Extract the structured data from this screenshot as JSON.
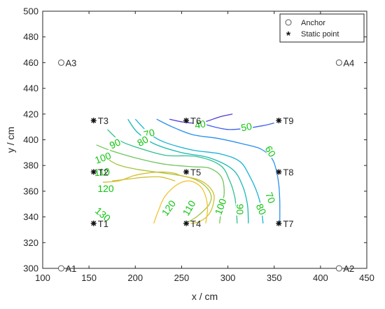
{
  "chart_data": {
    "type": "contour",
    "xlabel": "x / cm",
    "ylabel": "y / cm",
    "xlim": [
      100,
      450
    ],
    "ylim": [
      300,
      500
    ],
    "xticks": [
      100,
      150,
      200,
      250,
      300,
      350,
      400,
      450
    ],
    "yticks": [
      300,
      320,
      340,
      360,
      380,
      400,
      420,
      440,
      460,
      480,
      500
    ],
    "grid": false,
    "legend_position": "top-right",
    "legend": [
      {
        "label": "Anchor",
        "marker": "circle"
      },
      {
        "label": "Static point",
        "marker": "asterisk"
      }
    ],
    "anchors": [
      {
        "label": "A1",
        "x": 120,
        "y": 300
      },
      {
        "label": "A2",
        "x": 420,
        "y": 300
      },
      {
        "label": "A3",
        "x": 120,
        "y": 460
      },
      {
        "label": "A4",
        "x": 420,
        "y": 460
      }
    ],
    "static_points": [
      {
        "label": "T1",
        "x": 155,
        "y": 335
      },
      {
        "label": "T2",
        "x": 155,
        "y": 375
      },
      {
        "label": "T3",
        "x": 155,
        "y": 415
      },
      {
        "label": "T4",
        "x": 255,
        "y": 335
      },
      {
        "label": "T5",
        "x": 255,
        "y": 375
      },
      {
        "label": "T6",
        "x": 255,
        "y": 415
      },
      {
        "label": "T7",
        "x": 355,
        "y": 335
      },
      {
        "label": "T8",
        "x": 355,
        "y": 375
      },
      {
        "label": "T9",
        "x": 355,
        "y": 415
      }
    ],
    "contours": [
      {
        "level": 40,
        "color": "#4b3bd6",
        "label_at": [
          270,
          412
        ],
        "points": [
          [
            237,
            416
          ],
          [
            250,
            414
          ],
          [
            262,
            413
          ],
          [
            275,
            414
          ],
          [
            292,
            418
          ],
          [
            305,
            420
          ]
        ]
      },
      {
        "level": 50,
        "color": "#3e5ef0",
        "label_at": [
          315,
          410
        ],
        "points": [
          [
            263,
            415
          ],
          [
            280,
            411
          ],
          [
            300,
            408
          ],
          [
            320,
            409
          ],
          [
            338,
            411
          ],
          [
            350,
            413
          ]
        ]
      },
      {
        "level": 60,
        "color": "#2a8fef",
        "label_at": [
          345,
          390
        ],
        "points": [
          [
            223,
            416
          ],
          [
            240,
            410
          ],
          [
            262,
            404
          ],
          [
            290,
            401
          ],
          [
            315,
            397
          ],
          [
            335,
            393
          ],
          [
            347,
            386
          ],
          [
            352,
            377
          ],
          [
            355,
            365
          ],
          [
            356,
            352
          ],
          [
            356,
            335
          ]
        ]
      },
      {
        "level": 70,
        "color": "#1ab2d6",
        "label_at": [
          216,
          403
        ],
        "points": [
          [
            200,
            416
          ],
          [
            215,
            405
          ],
          [
            232,
            398
          ],
          [
            262,
            392
          ],
          [
            292,
            389
          ],
          [
            313,
            383
          ],
          [
            324,
            371
          ],
          [
            332,
            358
          ],
          [
            336,
            347
          ],
          [
            338,
            335
          ]
        ]
      },
      {
        "level": 80,
        "color": "#19b9b2",
        "label_at": [
          208,
          399
        ],
        "points": [
          [
            192,
            416
          ],
          [
            202,
            406
          ],
          [
            220,
            397
          ],
          [
            250,
            390
          ],
          [
            280,
            386
          ],
          [
            305,
            377
          ],
          [
            316,
            364
          ],
          [
            321,
            350
          ],
          [
            322,
            338
          ],
          [
            322,
            335
          ]
        ]
      },
      {
        "level": 90,
        "color": "#31c08c",
        "label_at": [
          308,
          345
        ],
        "points": [
          [
            170,
            408
          ],
          [
            182,
            400
          ],
          [
            198,
            395
          ],
          [
            232,
            388
          ],
          [
            266,
            387
          ],
          [
            292,
            380
          ],
          [
            302,
            368
          ],
          [
            307,
            357
          ],
          [
            309,
            347
          ],
          [
            310,
            335
          ]
        ]
      },
      {
        "level": 100,
        "color": "#6fc55a",
        "label_at": [
          162,
          396
        ],
        "points": [
          [
            158,
            396
          ],
          [
            172,
            392
          ],
          [
            200,
            386
          ],
          [
            232,
            381
          ],
          [
            262,
            379
          ],
          [
            280,
            378
          ],
          [
            293,
            371
          ],
          [
            296,
            359
          ],
          [
            293,
            347
          ],
          [
            291,
            335
          ]
        ]
      },
      {
        "level": 110,
        "color": "#a5c43c",
        "label_at": [
          257,
          349
        ],
        "points": [
          [
            162,
            389
          ],
          [
            180,
            381
          ],
          [
            202,
            377
          ],
          [
            232,
            374
          ],
          [
            250,
            372
          ],
          [
            265,
            369
          ],
          [
            277,
            363
          ],
          [
            282,
            356
          ],
          [
            280,
            350
          ],
          [
            274,
            345
          ],
          [
            266,
            340
          ],
          [
            257,
            336
          ]
        ]
      },
      {
        "level": 120,
        "color": "#d2bf33",
        "label_at": [
          238,
          346
        ],
        "points": [
          [
            165,
            367
          ],
          [
            182,
            368
          ],
          [
            198,
            372
          ],
          [
            212,
            374
          ],
          [
            228,
            375
          ],
          [
            242,
            374
          ],
          [
            250,
            372
          ],
          [
            268,
            369
          ],
          [
            279,
            364
          ],
          [
            285,
            357
          ],
          [
            283,
            347
          ],
          [
            277,
            340
          ],
          [
            268,
            336
          ],
          [
            260,
            335
          ]
        ]
      },
      {
        "level": 120,
        "color": "#d2bf33",
        "label_at": [
          150,
          362
        ],
        "points": [
          [
            175,
            368
          ],
          [
            187,
            369
          ],
          [
            198,
            370
          ],
          [
            213,
            371
          ],
          [
            228,
            371
          ],
          [
            243,
            368
          ]
        ]
      },
      {
        "level": 130,
        "color": "#f0c433",
        "label_at": [
          160,
          342
        ],
        "points": [
          [
            220,
            335
          ],
          [
            225,
            345
          ],
          [
            232,
            356
          ],
          [
            245,
            365
          ],
          [
            258,
            368
          ],
          [
            270,
            364
          ],
          [
            276,
            356
          ],
          [
            278,
            346
          ],
          [
            276,
            335
          ]
        ]
      }
    ],
    "contour_labels": [
      {
        "text": "40",
        "x": 270,
        "y": 412,
        "angle": -10
      },
      {
        "text": "50",
        "x": 320,
        "y": 410,
        "angle": -10
      },
      {
        "text": "60",
        "x": 346,
        "y": 391,
        "angle": 60
      },
      {
        "text": "70",
        "x": 215,
        "y": 405,
        "angle": -15
      },
      {
        "text": "80",
        "x": 208,
        "y": 399,
        "angle": -30
      },
      {
        "text": "90",
        "x": 178,
        "y": 397,
        "angle": -25
      },
      {
        "text": "100",
        "x": 165,
        "y": 386,
        "angle": -20
      },
      {
        "text": "110",
        "x": 164,
        "y": 375,
        "angle": -5
      },
      {
        "text": "120",
        "x": 168,
        "y": 362,
        "angle": 0
      },
      {
        "text": "130",
        "x": 165,
        "y": 342,
        "angle": 40
      },
      {
        "text": "120",
        "x": 236,
        "y": 347,
        "angle": -55
      },
      {
        "text": "110",
        "x": 258,
        "y": 347,
        "angle": -60
      },
      {
        "text": "100",
        "x": 292,
        "y": 348,
        "angle": -70
      },
      {
        "text": "90",
        "x": 313,
        "y": 346,
        "angle": 90
      },
      {
        "text": "80",
        "x": 336,
        "y": 346,
        "angle": 65
      },
      {
        "text": "70",
        "x": 346,
        "y": 355,
        "angle": 70
      }
    ]
  }
}
